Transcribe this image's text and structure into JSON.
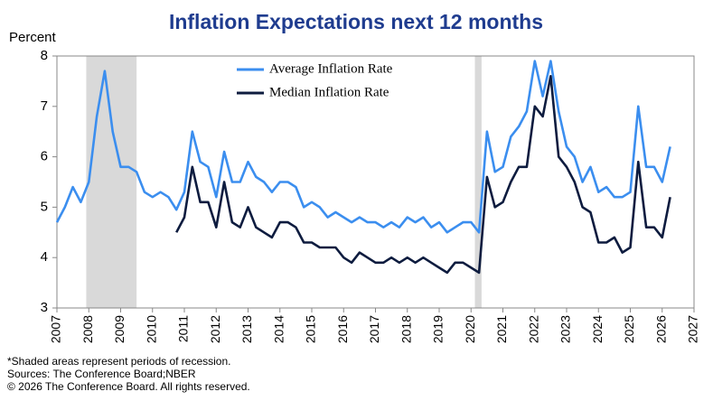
{
  "chart_data": {
    "type": "line",
    "title": "Inflation Expectations next 12 months",
    "y_label": "Percent",
    "x": [
      2007.0,
      2007.25,
      2007.5,
      2007.75,
      2008.0,
      2008.25,
      2008.5,
      2008.75,
      2009.0,
      2009.25,
      2009.5,
      2009.75,
      2010.0,
      2010.25,
      2010.5,
      2010.75,
      2011.0,
      2011.25,
      2011.5,
      2011.75,
      2012.0,
      2012.25,
      2012.5,
      2012.75,
      2013.0,
      2013.25,
      2013.5,
      2013.75,
      2014.0,
      2014.25,
      2014.5,
      2014.75,
      2015.0,
      2015.25,
      2015.5,
      2015.75,
      2016.0,
      2016.25,
      2016.5,
      2016.75,
      2017.0,
      2017.25,
      2017.5,
      2017.75,
      2018.0,
      2018.25,
      2018.5,
      2018.75,
      2019.0,
      2019.25,
      2019.5,
      2019.75,
      2020.0,
      2020.25,
      2020.5,
      2020.75,
      2021.0,
      2021.25,
      2021.5,
      2021.75,
      2022.0,
      2022.25,
      2022.5,
      2022.75,
      2023.0,
      2023.25,
      2023.5,
      2023.75,
      2024.0,
      2024.25,
      2024.5,
      2024.75,
      2025.0,
      2025.25,
      2025.5,
      2025.75,
      2026.0,
      2026.25
    ],
    "series": [
      {
        "name": "Average Inflation Rate",
        "color": "#3b8eef",
        "values": [
          4.7,
          5.0,
          5.4,
          5.1,
          5.5,
          6.8,
          7.7,
          6.5,
          5.8,
          5.8,
          5.7,
          5.3,
          5.2,
          5.3,
          5.2,
          4.95,
          5.3,
          6.5,
          5.9,
          5.8,
          5.2,
          6.1,
          5.5,
          5.5,
          5.9,
          5.6,
          5.5,
          5.3,
          5.5,
          5.5,
          5.4,
          5.0,
          5.1,
          5.0,
          4.8,
          4.9,
          4.8,
          4.7,
          4.8,
          4.7,
          4.7,
          4.6,
          4.7,
          4.6,
          4.8,
          4.7,
          4.8,
          4.6,
          4.7,
          4.5,
          4.6,
          4.7,
          4.7,
          4.5,
          6.5,
          5.7,
          5.8,
          6.4,
          6.6,
          6.9,
          7.9,
          7.2,
          7.9,
          6.9,
          6.2,
          6.0,
          5.5,
          5.8,
          5.3,
          5.4,
          5.2,
          5.2,
          5.3,
          7.0,
          5.8,
          5.8,
          5.5,
          6.2
        ]
      },
      {
        "name": "Median Inflation Rate",
        "color": "#0e1c3f",
        "values": [
          null,
          null,
          null,
          null,
          null,
          null,
          null,
          null,
          null,
          null,
          null,
          null,
          null,
          null,
          null,
          4.5,
          4.8,
          5.8,
          5.1,
          5.1,
          4.6,
          5.5,
          4.7,
          4.6,
          5.0,
          4.6,
          4.5,
          4.4,
          4.7,
          4.7,
          4.6,
          4.3,
          4.3,
          4.2,
          4.2,
          4.2,
          4.0,
          3.9,
          4.1,
          4.0,
          3.9,
          3.9,
          4.0,
          3.9,
          4.0,
          3.9,
          4.0,
          3.9,
          3.8,
          3.7,
          3.9,
          3.9,
          3.8,
          3.7,
          5.6,
          5.0,
          5.1,
          5.5,
          5.8,
          5.8,
          7.0,
          6.8,
          7.6,
          6.0,
          5.8,
          5.5,
          5.0,
          4.9,
          4.3,
          4.3,
          4.4,
          4.1,
          4.2,
          5.9,
          4.6,
          4.6,
          4.4,
          5.2
        ]
      }
    ],
    "recessions": [
      [
        2007.92,
        2009.5
      ],
      [
        2020.12,
        2020.33
      ]
    ],
    "xlim": [
      2007,
      2027
    ],
    "xticks": [
      2007,
      2008,
      2009,
      2010,
      2011,
      2012,
      2013,
      2014,
      2015,
      2016,
      2017,
      2018,
      2019,
      2020,
      2021,
      2022,
      2023,
      2024,
      2025,
      2026,
      2027
    ],
    "ylim": [
      3,
      8
    ],
    "yticks": [
      3,
      4,
      5,
      6,
      7,
      8
    ],
    "legend": "upper left",
    "notes": [
      "*Shaded areas represent periods of recession.",
      "Sources: The Conference Board;NBER",
      "© 2026 The Conference Board. All rights reserved."
    ]
  }
}
